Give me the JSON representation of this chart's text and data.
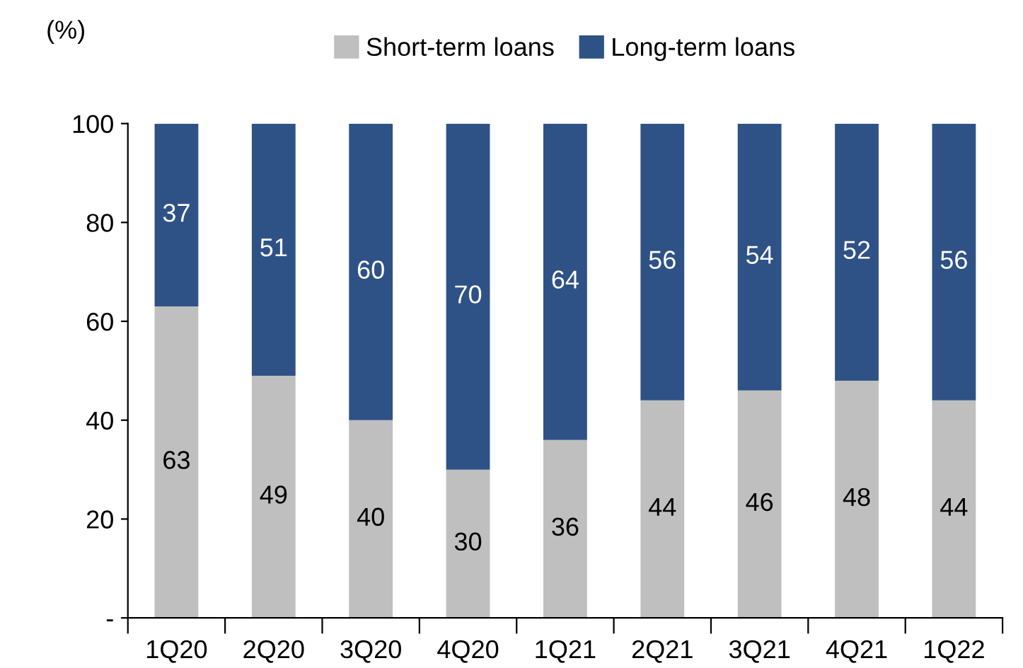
{
  "chart_data": {
    "type": "bar",
    "stacked": true,
    "ylabel": "(%)",
    "categories": [
      "1Q20",
      "2Q20",
      "3Q20",
      "4Q20",
      "1Q21",
      "2Q21",
      "3Q21",
      "4Q21",
      "1Q22"
    ],
    "series": [
      {
        "name": "Short-term loans",
        "color": "#bfbfbf",
        "values": [
          63,
          49,
          40,
          30,
          36,
          44,
          46,
          48,
          44
        ]
      },
      {
        "name": "Long-term loans",
        "color": "#2f5286",
        "values": [
          37,
          51,
          60,
          70,
          64,
          56,
          54,
          52,
          56
        ]
      }
    ],
    "ylim": [
      0,
      100
    ],
    "yticks": [
      {
        "value": 0,
        "label": "-"
      },
      20,
      40,
      60,
      80,
      100
    ],
    "data_labels": true,
    "legend": "top",
    "grid": false
  }
}
